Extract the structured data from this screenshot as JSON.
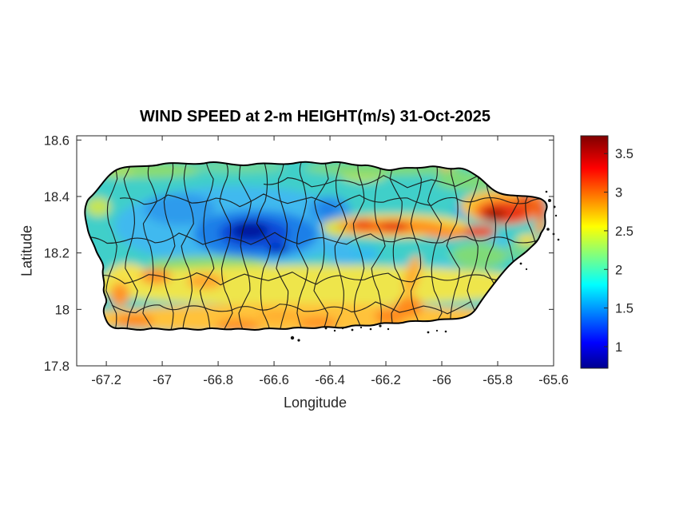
{
  "figure_title": "WIND SPEED at 2-m HEIGHT(m/s) 31-Oct-2025",
  "axes": {
    "xlabel": "Longitude",
    "ylabel": "Latitude",
    "x_tick_labels": [
      "-67.2",
      "-67",
      "-66.8",
      "-66.6",
      "-66.4",
      "-66.2",
      "-66",
      "-65.8",
      "-65.6"
    ],
    "y_tick_labels": [
      "17.8",
      "18",
      "18.2",
      "18.4",
      "18.6"
    ]
  },
  "colorbar": {
    "tick_labels": [
      "1",
      "1.5",
      "2",
      "2.5",
      "3",
      "3.5"
    ]
  },
  "chart_data": {
    "type": "heatmap",
    "title": "WIND SPEED at 2-m HEIGHT(m/s) 31-Oct-2025",
    "variable": "wind speed at 2-m height",
    "units": "m/s",
    "date_shown": "31-Oct-2025",
    "region": "Puerto Rico with municipality boundaries overlaid",
    "xlabel": "Longitude",
    "ylabel": "Latitude",
    "xlim": [
      -67.306,
      -65.6
    ],
    "ylim": [
      17.8,
      18.615
    ],
    "x_ticks": [
      -67.2,
      -67,
      -66.8,
      -66.6,
      -66.4,
      -66.2,
      -66,
      -65.8,
      -65.6
    ],
    "y_ticks": [
      17.8,
      18,
      18.2,
      18.4,
      18.6
    ],
    "grid": false,
    "colormap": "jet",
    "color_range": [
      0.72,
      3.73
    ],
    "colorbar_ticks": [
      1,
      1.5,
      2,
      2.5,
      3,
      3.5
    ],
    "colorbar_position": "right",
    "sampled_points": [
      {
        "lon": -66.67,
        "lat": 18.26,
        "wind_ms": 0.9,
        "note": "darkest-blue minimum over central mountains"
      },
      {
        "lon": -66.9,
        "lat": 18.33,
        "wind_ms": 1.6,
        "note": "blue pocket west-central"
      },
      {
        "lon": -66.42,
        "lat": 18.34,
        "wind_ms": 1.6,
        "note": "blue pocket north-central"
      },
      {
        "lon": -66.03,
        "lat": 18.34,
        "wind_ms": 1.8,
        "note": "small blue spot near San Juan area"
      },
      {
        "lon": -66.32,
        "lat": 18.29,
        "wind_ms": 3.3,
        "note": "red ridge, east-central interior"
      },
      {
        "lon": -66.21,
        "lat": 18.28,
        "wind_ms": 3.3,
        "note": "second red core of ridge"
      },
      {
        "lon": -65.82,
        "lat": 18.34,
        "wind_ms": 3.6,
        "note": "dark-red maximum, northeast corner"
      },
      {
        "lon": -65.96,
        "lat": 18.27,
        "wind_ms": 3.1,
        "note": "red streak linking ridge to northeast max"
      },
      {
        "lon": -67.02,
        "lat": 18.0,
        "wind_ms": 2.9,
        "note": "orange south-west coastal plain"
      },
      {
        "lon": -66.62,
        "lat": 17.97,
        "wind_ms": 2.9,
        "note": "orange south coast"
      },
      {
        "lon": -66.5,
        "lat": 18.08,
        "wind_ms": 2.6,
        "note": "yellow southern belt"
      },
      {
        "lon": -67.23,
        "lat": 18.35,
        "wind_ms": 2.4,
        "note": "yellow-green western tip"
      },
      {
        "lon": -66.6,
        "lat": 18.5,
        "wind_ms": 2.1,
        "note": "green-cyan north coast band"
      },
      {
        "lon": -65.78,
        "lat": 18.22,
        "wind_ms": 2.0,
        "note": "green-cyan east coast"
      },
      {
        "lon": -66.28,
        "lat": 18.18,
        "wind_ms": 1.9,
        "note": "cyan pocket south of ridge"
      }
    ]
  }
}
